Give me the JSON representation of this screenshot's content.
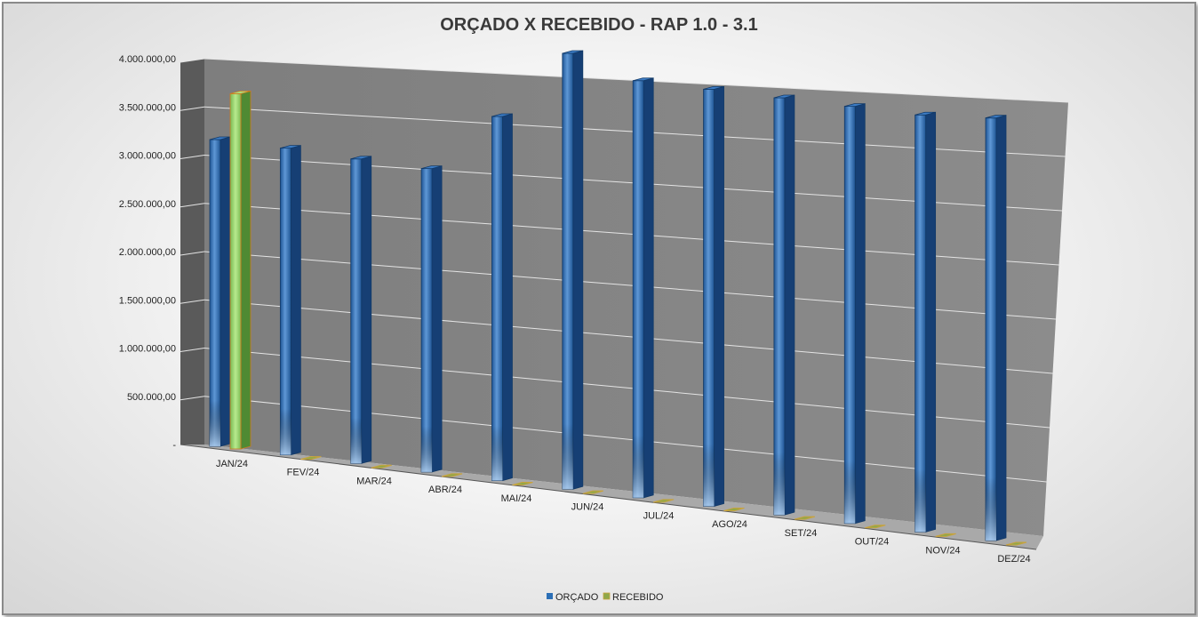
{
  "chart_data": {
    "type": "bar",
    "title": "ORÇADO X RECEBIDO - RAP 1.0 - 3.1",
    "categories": [
      "JAN/24",
      "FEV/24",
      "MAR/24",
      "ABR/24",
      "MAI/24",
      "JUN/24",
      "JUL/24",
      "AGO/24",
      "SET/24",
      "OUT/24",
      "NOV/24",
      "DEZ/24"
    ],
    "series": [
      {
        "name": "ORÇADO",
        "color": "#2b6fb6",
        "values": [
          2780000,
          2780000,
          2760000,
          2750000,
          3300000,
          3950000,
          3780000,
          3780000,
          3780000,
          3780000,
          3780000,
          3830000
        ]
      },
      {
        "name": "RECEBIDO",
        "color": "#8fd16a",
        "values": [
          3220000,
          0,
          0,
          0,
          0,
          0,
          0,
          0,
          0,
          0,
          0,
          0
        ]
      }
    ],
    "yticks": [
      "-",
      "500.000,00",
      "1.000.000,00",
      "1.500.000,00",
      "2.000.000,00",
      "2.500.000,00",
      "3.000.000,00",
      "3.500.000,00",
      "4.000.000,00"
    ],
    "ylim": [
      0,
      4000000
    ],
    "grid": true,
    "legend_position": "bottom"
  }
}
